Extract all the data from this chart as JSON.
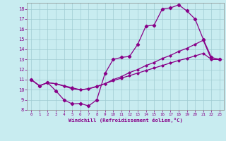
{
  "xlabel": "Windchill (Refroidissement éolien,°C)",
  "bg_color": "#c8ecf0",
  "grid_color": "#a0ccd2",
  "line_color": "#880088",
  "xlim": [
    -0.5,
    23.5
  ],
  "ylim": [
    8,
    18.6
  ],
  "xtick_labels": [
    "0",
    "1",
    "2",
    "3",
    "4",
    "5",
    "6",
    "7",
    "8",
    "9",
    "10",
    "11",
    "12",
    "13",
    "14",
    "15",
    "16",
    "17",
    "18",
    "19",
    "20",
    "21",
    "22",
    "23"
  ],
  "ytick_labels": [
    "8",
    "9",
    "10",
    "11",
    "12",
    "13",
    "14",
    "15",
    "16",
    "17",
    "18"
  ],
  "main_x": [
    0,
    1,
    2,
    3,
    4,
    5,
    6,
    7,
    8,
    9,
    10,
    11,
    12,
    13,
    14,
    15,
    16,
    17,
    18,
    19,
    20,
    21,
    22,
    23
  ],
  "main_y": [
    11.0,
    10.4,
    10.7,
    9.9,
    9.0,
    8.6,
    8.65,
    8.4,
    9.0,
    11.6,
    13.0,
    13.2,
    13.3,
    14.5,
    16.3,
    16.4,
    18.0,
    18.1,
    18.4,
    17.8,
    17.0,
    15.0,
    13.2,
    13.0
  ],
  "line2_x": [
    0,
    1,
    2,
    3,
    4,
    5,
    6,
    7,
    8,
    9,
    10,
    11,
    12,
    13,
    14,
    15,
    16,
    17,
    18,
    19,
    20,
    21,
    22,
    23
  ],
  "line2_y": [
    11.0,
    10.4,
    10.7,
    10.6,
    10.35,
    10.1,
    10.0,
    10.1,
    10.3,
    10.6,
    11.0,
    11.3,
    11.7,
    12.0,
    12.4,
    12.7,
    13.1,
    13.4,
    13.8,
    14.1,
    14.5,
    14.9,
    13.0,
    13.0
  ],
  "line3_x": [
    0,
    1,
    2,
    3,
    4,
    5,
    6,
    7,
    8,
    9,
    10,
    11,
    12,
    13,
    14,
    15,
    16,
    17,
    18,
    19,
    20,
    21,
    22,
    23
  ],
  "line3_y": [
    11.0,
    10.4,
    10.7,
    10.6,
    10.4,
    10.2,
    10.0,
    10.1,
    10.35,
    10.6,
    10.9,
    11.15,
    11.4,
    11.65,
    11.9,
    12.15,
    12.4,
    12.65,
    12.9,
    13.1,
    13.35,
    13.6,
    13.0,
    13.0
  ]
}
